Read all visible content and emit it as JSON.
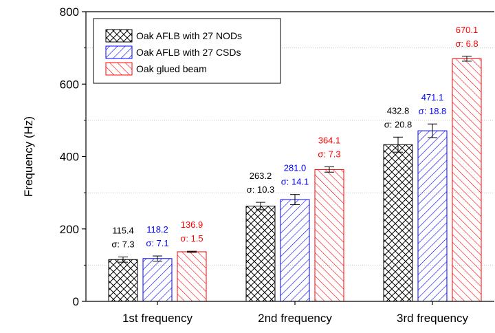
{
  "chart_data": {
    "type": "bar",
    "categories": [
      "1st frequency",
      "2nd frequency",
      "3rd frequency"
    ],
    "ylabel": "Frequency (Hz)",
    "xlabel": "",
    "ylim": [
      0,
      800
    ],
    "yticks": [
      0,
      200,
      400,
      600,
      800
    ],
    "grid": "horizontal dotted",
    "legend_position": "top-left",
    "series": [
      {
        "name": "Oak AFLB with 27 NODs",
        "color": "#000000",
        "pattern": "crosshatch",
        "values": [
          115.4,
          263.2,
          432.8
        ],
        "errors": [
          7.3,
          10.3,
          20.8
        ],
        "value_labels": [
          "115.4",
          "263.2",
          "432.8"
        ],
        "sigma_labels": [
          "σ: 7.3",
          "σ: 10.3",
          "σ: 20.8"
        ]
      },
      {
        "name": "Oak AFLB with 27 CSDs",
        "color": "#0000ff",
        "pattern": "diagonal-forward",
        "values": [
          118.2,
          281.0,
          471.1
        ],
        "errors": [
          7.1,
          14.1,
          18.8
        ],
        "value_labels": [
          "118.2",
          "281.0",
          "471.1"
        ],
        "sigma_labels": [
          "σ: 7.1",
          "σ: 14.1",
          "σ: 18.8"
        ]
      },
      {
        "name": "Oak glued beam",
        "color": "#ff0000",
        "pattern": "diagonal-backward",
        "values": [
          136.9,
          364.1,
          670.1
        ],
        "errors": [
          1.5,
          7.3,
          6.8
        ],
        "value_labels": [
          "136.9",
          "364.1",
          "670.1"
        ],
        "sigma_labels": [
          "σ: 1.5",
          "σ: 7.3",
          "σ: 6.8"
        ]
      }
    ]
  }
}
